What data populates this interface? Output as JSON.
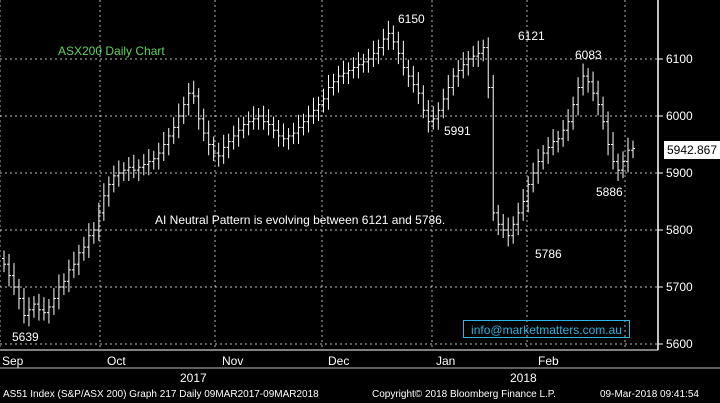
{
  "chart_data": {
    "type": "ohlc",
    "title": "ASX200 Daily Chart",
    "annotation": "AI Neutral Pattern is evolving between 6121 and 5786.",
    "email": "info@marketmatters.com.au",
    "last_price": "5942.867",
    "ylim": [
      5590,
      6195
    ],
    "yticks": [
      5600,
      5700,
      5800,
      5900,
      6000,
      6100
    ],
    "xticks": [
      "Sep",
      "Oct",
      "Nov",
      "Dec",
      "Jan",
      "Feb"
    ],
    "years": [
      "2017",
      "2018"
    ],
    "labels": [
      {
        "text": "6150",
        "date": "2017-12-20",
        "value": 6150
      },
      {
        "text": "6121",
        "date": "2018-01-24",
        "value": 6121
      },
      {
        "text": "6083",
        "date": "2018-02-27",
        "value": 6083
      },
      {
        "text": "5991",
        "date": "2018-01-10",
        "value": 5991
      },
      {
        "text": "5886",
        "date": "2018-03-02",
        "value": 5886
      },
      {
        "text": "5786",
        "date": "2018-02-09",
        "value": 5786
      },
      {
        "text": "5639",
        "date": "2017-09-06",
        "value": 5639
      }
    ],
    "closes": [
      5740,
      5720,
      5700,
      5680,
      5650,
      5660,
      5670,
      5660,
      5655,
      5665,
      5680,
      5700,
      5710,
      5730,
      5740,
      5760,
      5770,
      5790,
      5800,
      5830,
      5860,
      5880,
      5895,
      5900,
      5905,
      5910,
      5905,
      5910,
      5915,
      5920,
      5925,
      5935,
      5950,
      5965,
      5980,
      6000,
      6020,
      6040,
      6035,
      5995,
      5970,
      5950,
      5935,
      5930,
      5945,
      5955,
      5965,
      5975,
      5985,
      5990,
      5995,
      6000,
      5990,
      5985,
      5975,
      5965,
      5960,
      5965,
      5970,
      5980,
      5990,
      6000,
      6010,
      6020,
      6030,
      6050,
      6060,
      6070,
      6075,
      6080,
      6085,
      6090,
      6095,
      6100,
      6110,
      6120,
      6135,
      6145,
      6130,
      6110,
      6085,
      6070,
      6055,
      6040,
      6010,
      5990,
      5995,
      6010,
      6030,
      6050,
      6070,
      6080,
      6090,
      6100,
      6105,
      6110,
      6120,
      6050,
      5830,
      5810,
      5800,
      5790,
      5810,
      5830,
      5850,
      5880,
      5900,
      5920,
      5935,
      5945,
      5955,
      5960,
      5975,
      5990,
      6020,
      6050,
      6070,
      6060,
      6040,
      6020,
      5990,
      5950,
      5920,
      5905,
      5920,
      5940,
      5942.867
    ]
  },
  "footer": {
    "left": "AS51 Index (S&P/ASX 200) Graph 217  Daily 09MAR2017-09MAR2018",
    "middle": "Copyright© 2018 Bloomberg Finance L.P.",
    "right": "09-Mar-2018 09:41:54"
  }
}
